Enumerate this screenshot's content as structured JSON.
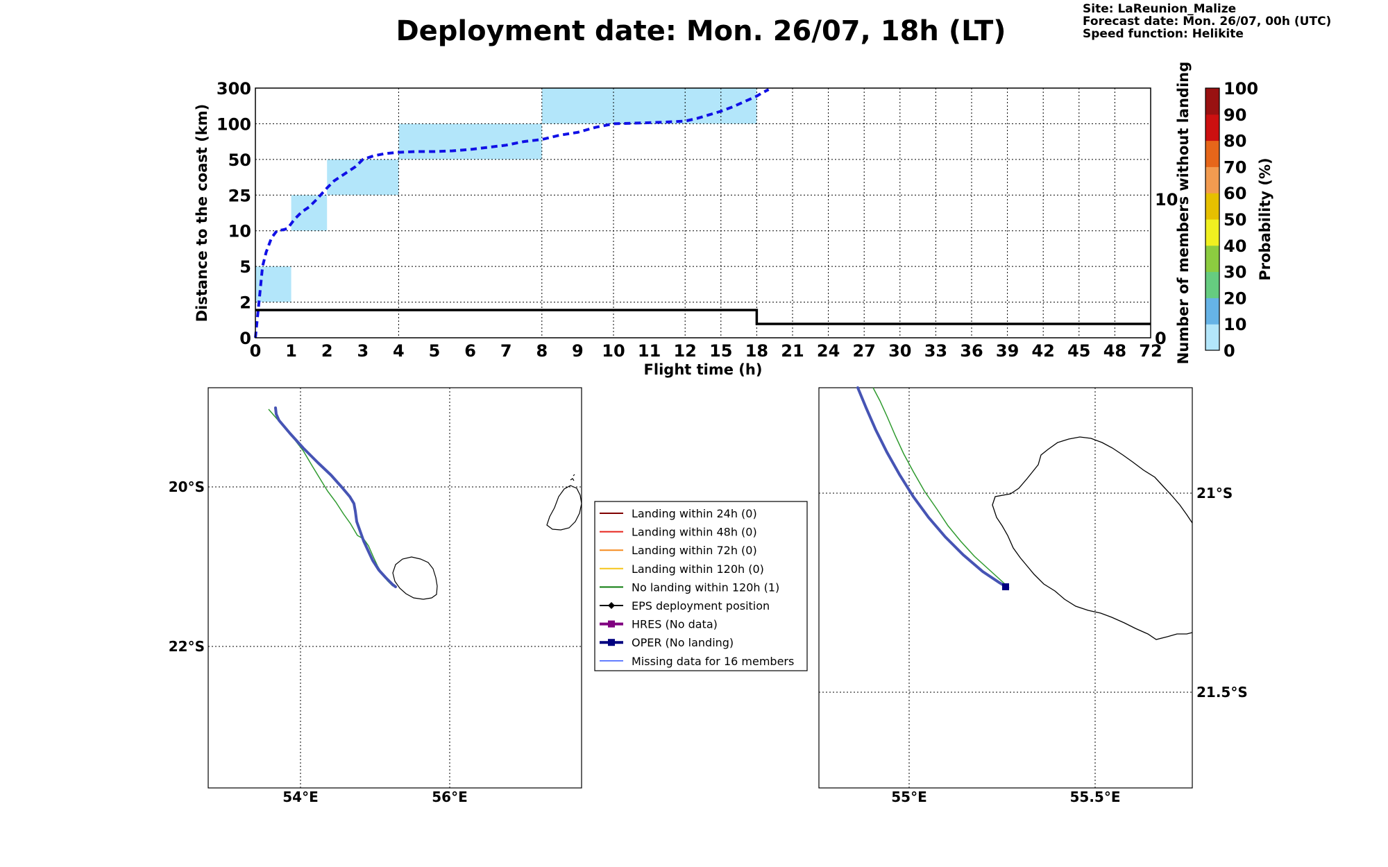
{
  "title": "Deployment date: Mon. 26/07, 18h (LT)",
  "meta": {
    "site": "Site: LaReunion_Malize",
    "forecast": "Forecast date: Mon. 26/07, 00h (UTC)",
    "speed": "Speed function: Helikite"
  },
  "chart_data": [
    {
      "type": "line",
      "xlabel": "Flight time (h)",
      "ylabel": "Distance to the coast (km)",
      "y2label": "Number of members without landing",
      "x_ticks": [
        "0",
        "1",
        "2",
        "3",
        "4",
        "5",
        "6",
        "7",
        "8",
        "9",
        "10",
        "11",
        "12",
        "15",
        "18",
        "21",
        "24",
        "27",
        "30",
        "33",
        "36",
        "39",
        "42",
        "45",
        "48",
        "72"
      ],
      "y_ticks": [
        "0",
        "2",
        "5",
        "10",
        "25",
        "50",
        "100",
        "300"
      ],
      "y2_ticks": [
        "0",
        "10"
      ],
      "y2_range": [
        0,
        18
      ],
      "probability_bins": [
        {
          "x0": "0",
          "x1": "1",
          "y0": "2",
          "y1": "5",
          "probability_bin": "0-10"
        },
        {
          "x0": "1",
          "x1": "2",
          "y0": "10",
          "y1": "25",
          "probability_bin": "0-10"
        },
        {
          "x0": "2",
          "x1": "4",
          "y0": "25",
          "y1": "50",
          "probability_bin": "0-10"
        },
        {
          "x0": "4",
          "x1": "8",
          "y0": "50",
          "y1": "100",
          "probability_bin": "0-10"
        },
        {
          "x0": "8",
          "x1": "18",
          "y0": "100",
          "y1": "300",
          "probability_bin": "0-10"
        }
      ],
      "series": [
        {
          "style": "dashed-blue",
          "axis": "left",
          "points": [
            [
              0,
              0
            ],
            [
              0.05,
              1
            ],
            [
              0.1,
              2
            ],
            [
              0.2,
              5
            ],
            [
              0.3,
              7
            ],
            [
              0.45,
              9
            ],
            [
              0.6,
              10
            ],
            [
              0.8,
              10.5
            ],
            [
              0.9,
              11
            ],
            [
              1.0,
              13
            ],
            [
              1.1,
              15
            ],
            [
              1.3,
              18
            ],
            [
              1.5,
              20
            ],
            [
              1.7,
              23
            ],
            [
              2.0,
              30
            ],
            [
              2.2,
              35
            ],
            [
              2.5,
              40
            ],
            [
              2.8,
              45
            ],
            [
              3.0,
              50
            ],
            [
              3.3,
              55
            ],
            [
              3.6,
              58
            ],
            [
              4.0,
              60
            ],
            [
              4.5,
              61
            ],
            [
              5.0,
              61
            ],
            [
              5.5,
              62
            ],
            [
              6.0,
              64
            ],
            [
              6.5,
              67
            ],
            [
              7.0,
              70
            ],
            [
              7.5,
              75
            ],
            [
              8.0,
              78
            ],
            [
              8.5,
              84
            ],
            [
              9.0,
              88
            ],
            [
              9.5,
              95
            ],
            [
              10.0,
              100
            ],
            [
              10.5,
              103
            ],
            [
              11.0,
              106
            ],
            [
              11.5,
              110
            ],
            [
              12.0,
              115
            ],
            [
              13.0,
              130
            ],
            [
              14.0,
              150
            ],
            [
              15.0,
              170
            ],
            [
              16.0,
              195
            ],
            [
              17.0,
              225
            ],
            [
              18.0,
              255
            ],
            [
              18.5,
              275
            ],
            [
              19.0,
              292
            ]
          ]
        },
        {
          "style": "solid-black",
          "axis": "right",
          "points": [
            [
              0,
              2
            ],
            [
              18,
              2
            ],
            [
              18,
              1
            ],
            [
              72,
              1
            ]
          ]
        }
      ]
    }
  ],
  "colorbar": {
    "label": "Probability (%)",
    "ticks": [
      "0",
      "10",
      "20",
      "30",
      "40",
      "50",
      "60",
      "70",
      "80",
      "90",
      "100"
    ],
    "colors": [
      "#b3e6fa",
      "#66b3e6",
      "#66cc80",
      "#8ccc40",
      "#f0f020",
      "#e6c000",
      "#f29b50",
      "#e6661a",
      "#cc1010",
      "#991111",
      "#660011"
    ]
  },
  "maps": {
    "left": {
      "lon_ticks": [
        "54°E",
        "56°E"
      ],
      "lat_ticks": [
        "20°S",
        "22°S"
      ]
    },
    "right": {
      "lon_ticks": [
        "55°E",
        "55.5°E"
      ],
      "lat_ticks": [
        "21°S",
        "21.5°S"
      ]
    }
  },
  "legend": {
    "items": [
      {
        "label": "Landing within 24h (0)",
        "color": "#800000",
        "marker": "none",
        "width": 2
      },
      {
        "label": "Landing within 48h (0)",
        "color": "#e6221a",
        "marker": "none",
        "width": 2
      },
      {
        "label": "Landing within 72h (0)",
        "color": "#f58a1f",
        "marker": "none",
        "width": 2
      },
      {
        "label": "Landing within 120h (0)",
        "color": "#f5c518",
        "marker": "none",
        "width": 2
      },
      {
        "label": "No landing within 120h (1)",
        "color": "#0a7a0a",
        "marker": "none",
        "width": 2
      },
      {
        "label": "EPS deployment position",
        "color": "#000000",
        "marker": "diamond",
        "width": 2
      },
      {
        "label": "HRES (No data)",
        "color": "#800080",
        "marker": "square",
        "width": 4
      },
      {
        "label": "OPER (No landing)",
        "color": "#000080",
        "marker": "square",
        "width": 4
      },
      {
        "label": "Missing data for 16 members",
        "color": "#3355ff",
        "marker": "none",
        "width": 1.5
      }
    ]
  }
}
